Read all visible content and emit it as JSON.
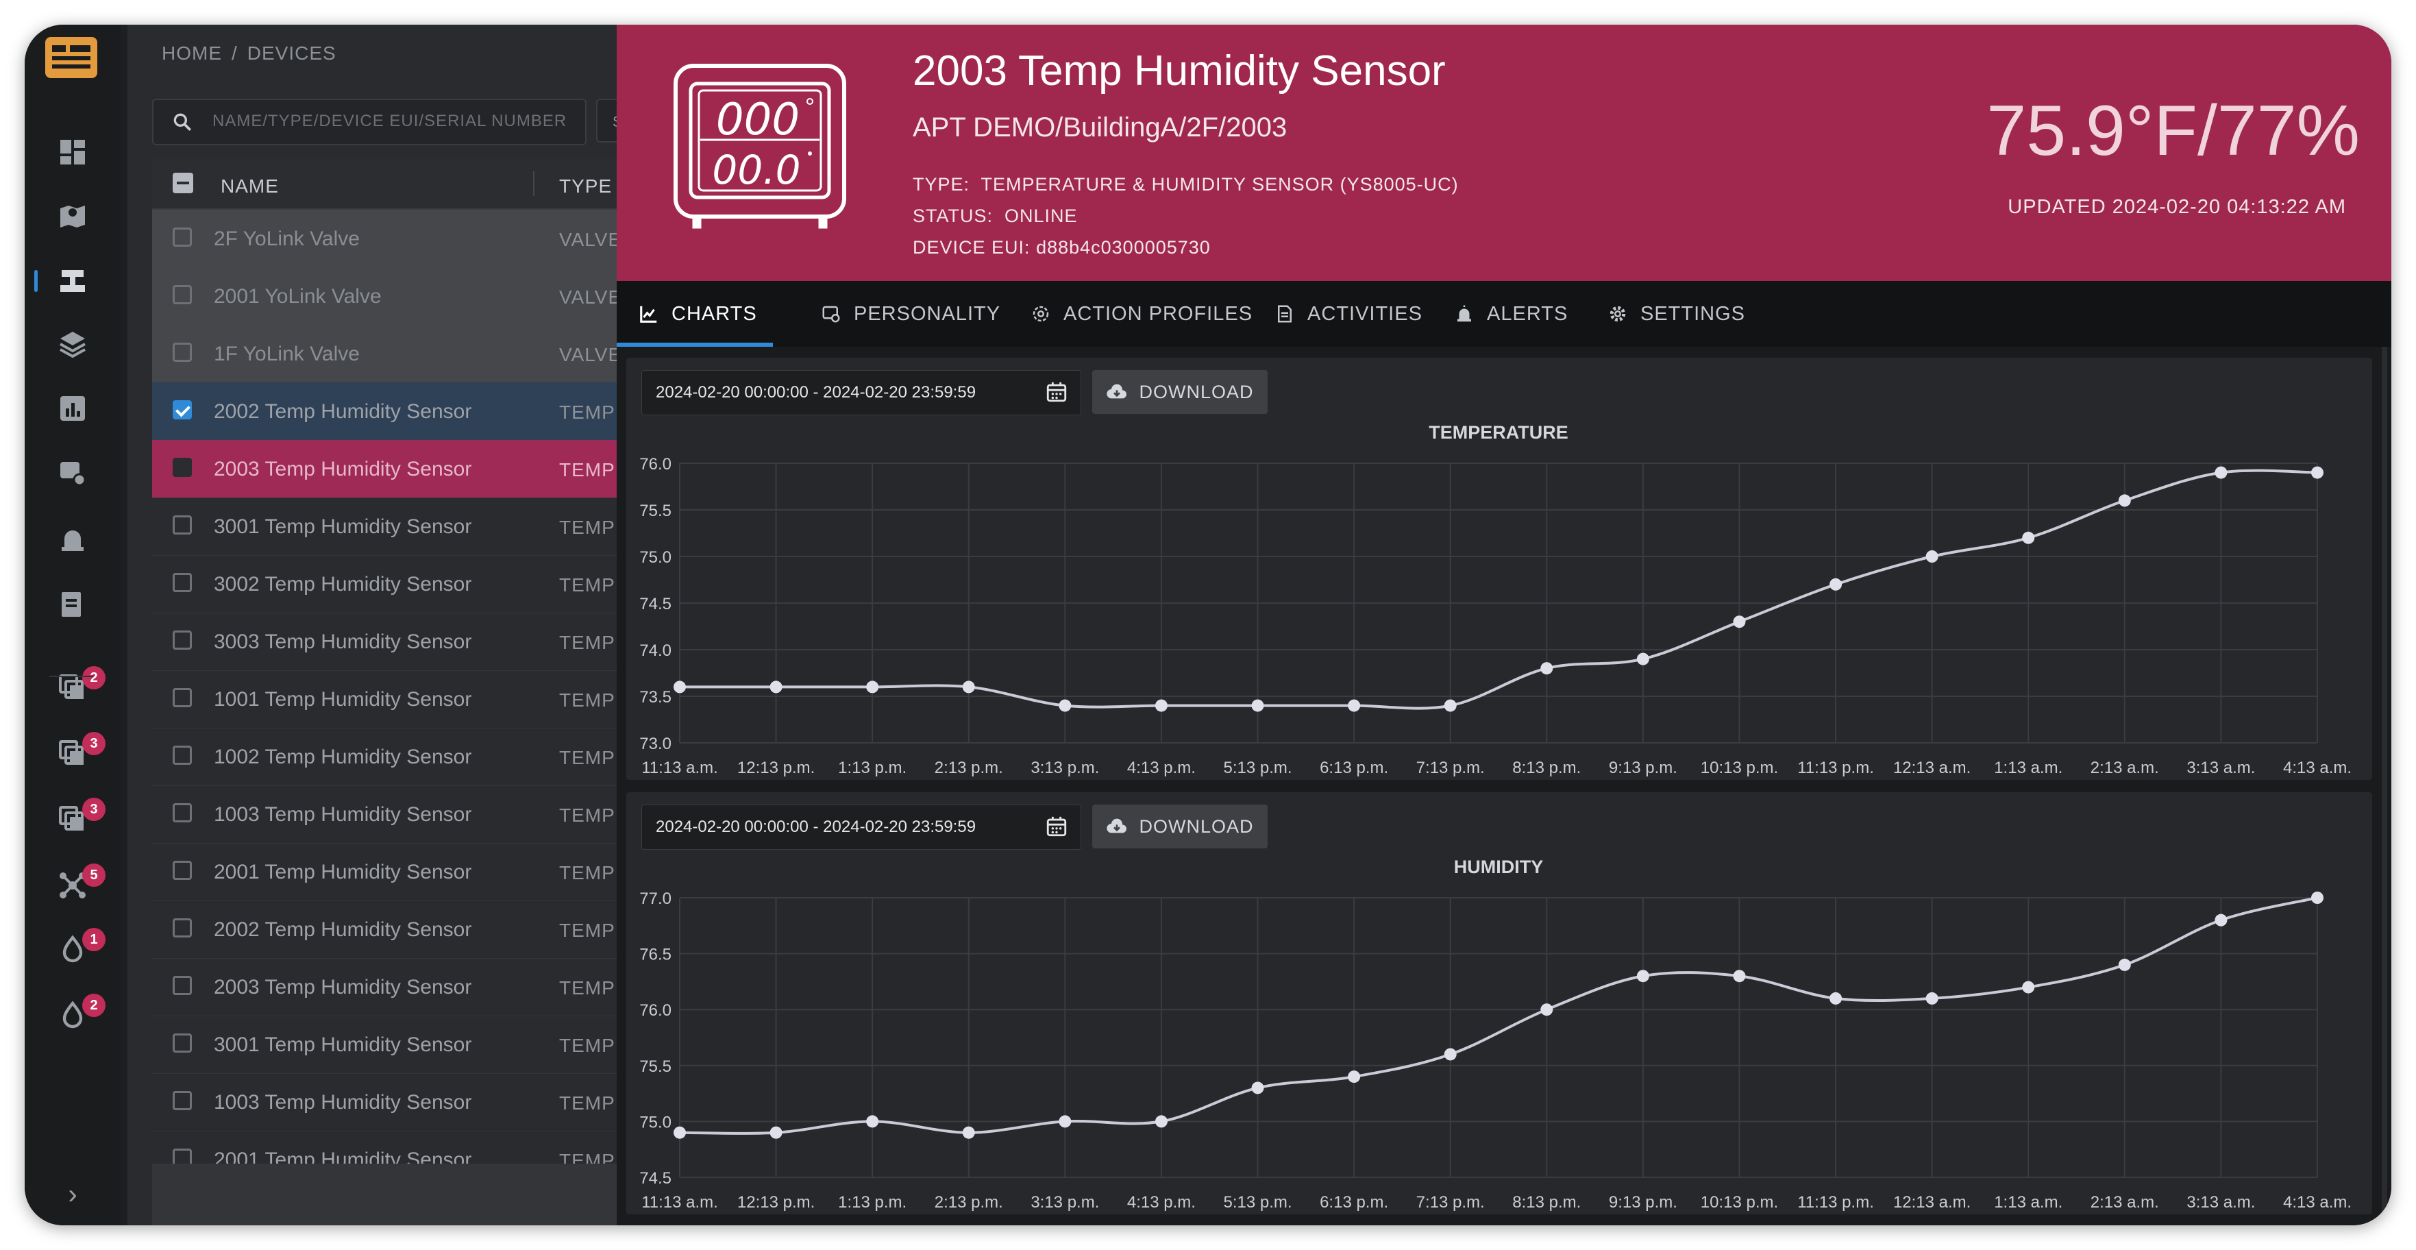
{
  "colors": {
    "accent": "#2f8ad8",
    "hero": "#a0284f",
    "selected_row": "#9e2a55",
    "badge": "#c22d5a",
    "chart_line": "#c9cbd8"
  },
  "rail": {
    "items": [
      {
        "icon": "dashboard-icon"
      },
      {
        "icon": "map-icon"
      },
      {
        "icon": "devices-icon",
        "active": true
      },
      {
        "icon": "layers-icon"
      },
      {
        "icon": "reports-icon"
      },
      {
        "icon": "rules-icon"
      },
      {
        "icon": "alarm-icon"
      },
      {
        "icon": "document-icon"
      },
      {
        "icon": "group-icon",
        "badge": "2"
      },
      {
        "icon": "group-icon",
        "badge": "3"
      },
      {
        "icon": "group-icon",
        "badge": "3"
      },
      {
        "icon": "network-icon",
        "badge": "5"
      },
      {
        "icon": "water-drop-icon",
        "badge": "1"
      },
      {
        "icon": "water-drop-icon",
        "badge": "2"
      }
    ],
    "toggle": "›"
  },
  "list": {
    "breadcrumb": {
      "home": "HOME",
      "sep": "/",
      "current": "DEVICES"
    },
    "search_placeholder": "NAME/TYPE/DEVICE EUI/SERIAL NUMBER",
    "status_filter": "STA",
    "columns": {
      "name": "NAME",
      "type": "TYPE"
    },
    "rows": [
      {
        "name": "2F YoLink Valve",
        "type": "VALVE DEVICE",
        "state": "valve"
      },
      {
        "name": "2001 YoLink Valve",
        "type": "VALVE DEVICE",
        "state": "valve"
      },
      {
        "name": "1F YoLink Valve",
        "type": "VALVE DEVICE",
        "state": "valve"
      },
      {
        "name": "2002 Temp Humidity Sensor",
        "type": "TEMPERATURE",
        "state": "checked"
      },
      {
        "name": "2003 Temp Humidity Sensor",
        "type": "TEMPERATURE",
        "state": "selected"
      },
      {
        "name": "3001 Temp Humidity Sensor",
        "type": "TEMPERATURE",
        "state": ""
      },
      {
        "name": "3002 Temp Humidity Sensor",
        "type": "TEMPERATURE",
        "state": ""
      },
      {
        "name": "3003 Temp Humidity Sensor",
        "type": "TEMPERATURE",
        "state": ""
      },
      {
        "name": "1001 Temp Humidity Sensor",
        "type": "TEMPERATURE",
        "state": ""
      },
      {
        "name": "1002 Temp Humidity Sensor",
        "type": "TEMPERATURE",
        "state": ""
      },
      {
        "name": "1003 Temp Humidity Sensor",
        "type": "TEMPERATURE",
        "state": ""
      },
      {
        "name": "2001 Temp Humidity Sensor",
        "type": "TEMPERATURE",
        "state": ""
      },
      {
        "name": "2002 Temp Humidity Sensor",
        "type": "TEMPERATURE",
        "state": ""
      },
      {
        "name": "2003 Temp Humidity Sensor",
        "type": "TEMPERATURE",
        "state": ""
      },
      {
        "name": "3001 Temp Humidity Sensor",
        "type": "TEMPERATURE",
        "state": ""
      },
      {
        "name": "1003 Temp Humidity Sensor",
        "type": "TEMPERATURE",
        "state": ""
      },
      {
        "name": "2001 Temp Humidity Sensor",
        "type": "TEMPERATURE",
        "state": ""
      }
    ]
  },
  "device": {
    "title": "2003 Temp Humidity Sensor",
    "path": "APT DEMO/BuildingA/2F/2003",
    "type_label": "TYPE:",
    "type_value": "TEMPERATURE & HUMIDITY SENSOR (YS8005-UC)",
    "status_label": "STATUS:",
    "status_value": "ONLINE",
    "eui_label": "DEVICE EUI:",
    "eui_value": "d88b4c0300005730",
    "reading": "75.9°F/77%",
    "updated": "UPDATED 2024-02-20 04:13:22 AM",
    "display_top": "000",
    "display_bottom": "00.0"
  },
  "tabs": [
    {
      "label": "CHARTS",
      "icon": "line-chart-icon",
      "active": true
    },
    {
      "label": "PERSONALITY",
      "icon": "device-settings-icon"
    },
    {
      "label": "ACTION PROFILES",
      "icon": "gear-outline-icon"
    },
    {
      "label": "ACTIVITIES",
      "icon": "document-icon"
    },
    {
      "label": "ALERTS",
      "icon": "alarm-icon"
    },
    {
      "label": "SETTINGS",
      "icon": "gear-icon"
    }
  ],
  "charts_ui": {
    "date_range": "2024-02-20 00:00:00 - 2024-02-20 23:59:59",
    "download_label": "DOWNLOAD"
  },
  "chart_data": [
    {
      "type": "line",
      "title": "TEMPERATURE",
      "x": [
        "11:13 a.m.",
        "12:13 p.m.",
        "1:13 p.m.",
        "2:13 p.m.",
        "3:13 p.m.",
        "4:13 p.m.",
        "5:13 p.m.",
        "6:13 p.m.",
        "7:13 p.m.",
        "8:13 p.m.",
        "9:13 p.m.",
        "10:13 p.m.",
        "11:13 p.m.",
        "12:13 a.m.",
        "1:13 a.m.",
        "2:13 a.m.",
        "3:13 a.m.",
        "4:13 a.m."
      ],
      "values": [
        73.6,
        73.6,
        73.6,
        73.6,
        73.4,
        73.4,
        73.4,
        73.4,
        73.4,
        73.8,
        73.9,
        74.3,
        74.7,
        75.0,
        75.2,
        75.6,
        75.9,
        75.9
      ],
      "ylim": [
        73.0,
        76.0
      ],
      "yticks": [
        "73.0",
        "73.5",
        "74.0",
        "74.5",
        "75.0",
        "75.5",
        "76.0"
      ],
      "grid": true
    },
    {
      "type": "line",
      "title": "HUMIDITY",
      "x": [
        "11:13 a.m.",
        "12:13 p.m.",
        "1:13 p.m.",
        "2:13 p.m.",
        "3:13 p.m.",
        "4:13 p.m.",
        "5:13 p.m.",
        "6:13 p.m.",
        "7:13 p.m.",
        "8:13 p.m.",
        "9:13 p.m.",
        "10:13 p.m.",
        "11:13 p.m.",
        "12:13 a.m.",
        "1:13 a.m.",
        "2:13 a.m.",
        "3:13 a.m.",
        "4:13 a.m."
      ],
      "values": [
        74.9,
        74.9,
        75.0,
        74.9,
        75.0,
        75.0,
        75.3,
        75.4,
        75.6,
        76.0,
        76.3,
        76.3,
        76.1,
        76.1,
        76.2,
        76.4,
        76.8,
        77.0
      ],
      "ylim": [
        74.5,
        77.0
      ],
      "yticks": [
        "74.5",
        "75.0",
        "75.5",
        "76.0",
        "76.5",
        "77.0"
      ],
      "grid": true
    }
  ]
}
